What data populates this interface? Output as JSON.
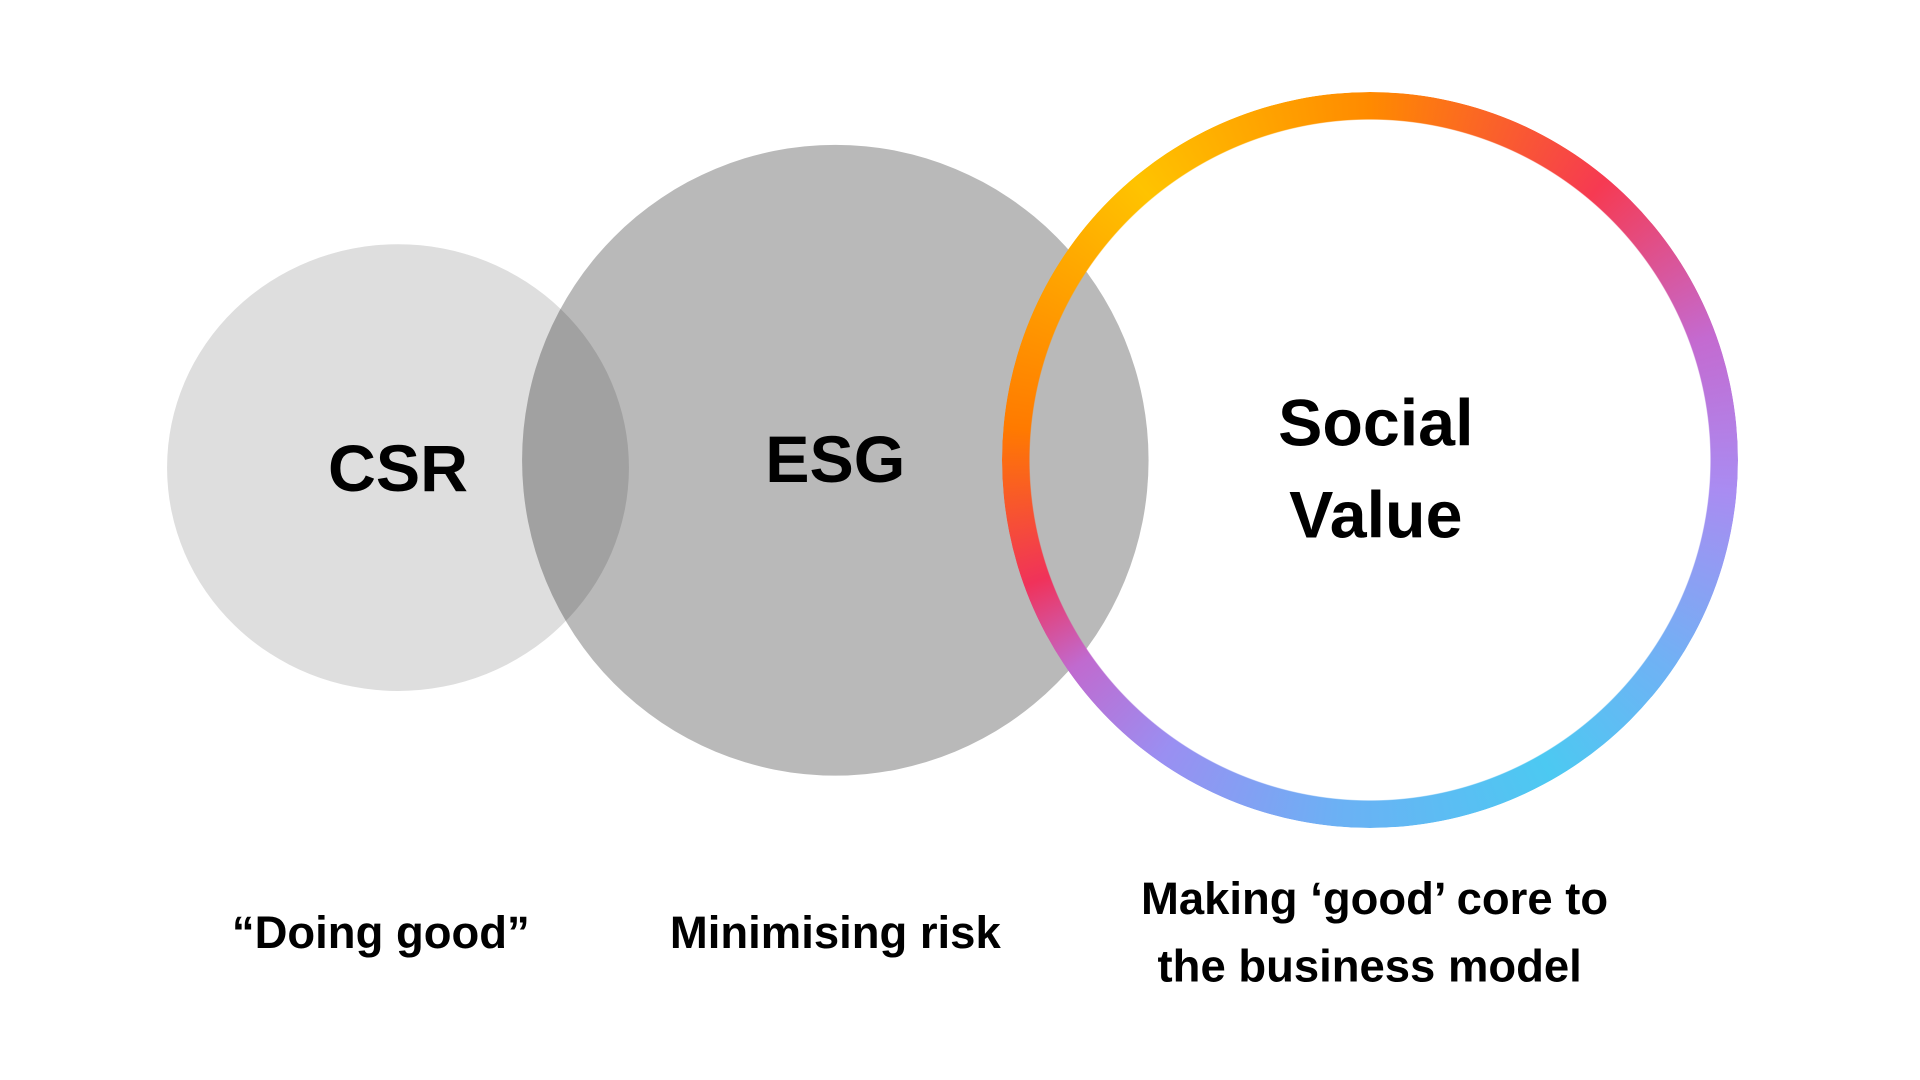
{
  "circles": [
    {
      "label": "CSR",
      "caption_lines": [
        "“Doing good”"
      ],
      "color": "#dedede"
    },
    {
      "label": "ESG",
      "caption_lines": [
        "Minimising risk"
      ],
      "color": "#b9b9b9"
    },
    {
      "label_lines": [
        "Social",
        "Value"
      ],
      "caption_lines": [
        "Making ‘good’ core to",
        "the business model"
      ],
      "style": "gradient-ring"
    }
  ],
  "overlap_color": "#a6a6a6"
}
